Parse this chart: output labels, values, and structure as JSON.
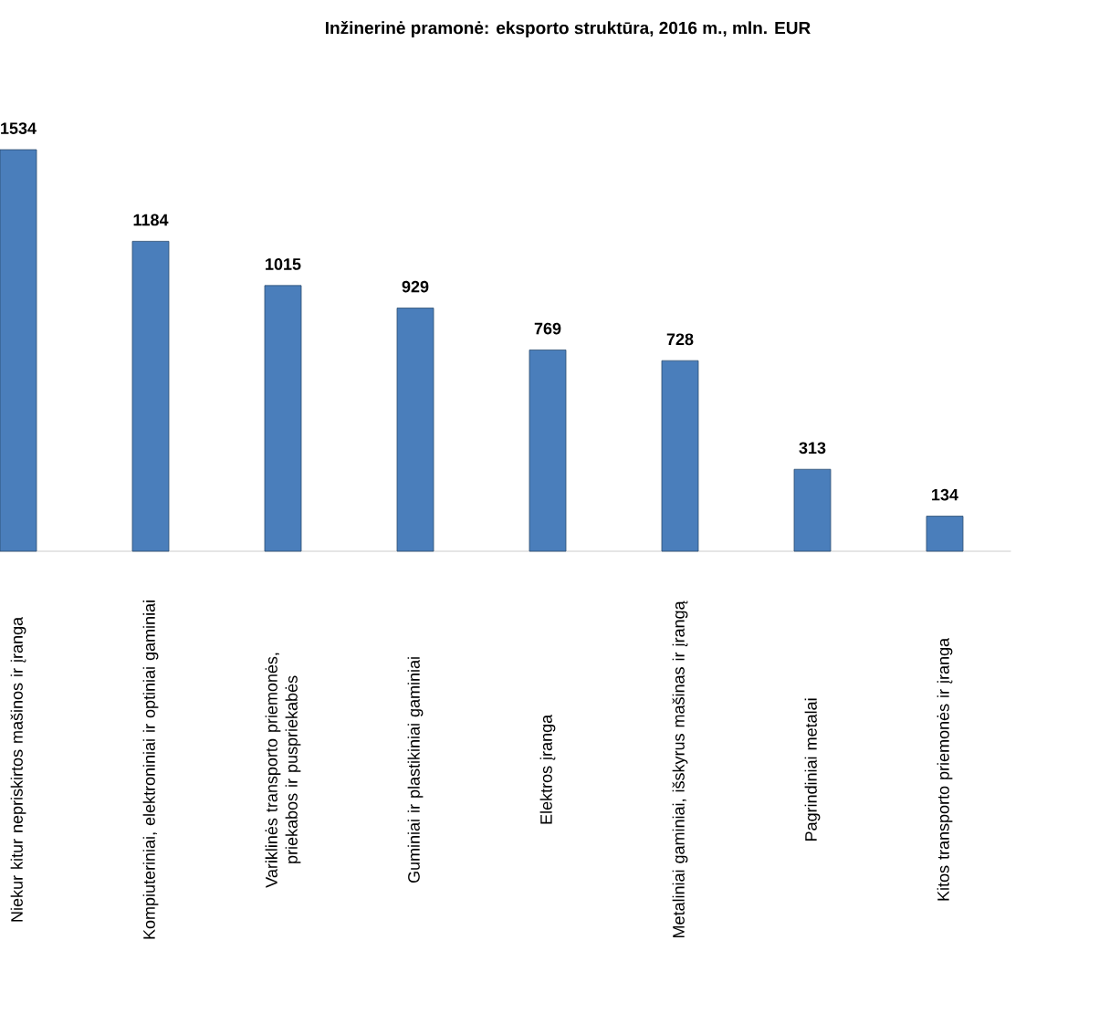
{
  "chart_data": {
    "type": "bar",
    "title": "Inžinerinė pramonė: eksporto struktūra, 2016 m., mln. EUR",
    "categories": [
      "Niekur kitur nepriskirtos mašinos ir įranga",
      "Kompiuteriniai, elektroniniai ir optiniai gaminiai",
      "Variklinės transporto priemonės, priekabos ir puspriekabės",
      "Guminiai ir plastikiniai gaminiai",
      "Elektros įranga",
      "Metaliniai gaminiai, išskyrus mašinas ir įrangą",
      "Pagrindiniai metalai",
      "Kitos transporto priemonės ir įranga"
    ],
    "values": [
      1534,
      1184,
      1015,
      929,
      769,
      728,
      313,
      134
    ],
    "color": "#4a7ebb",
    "data_labels": true,
    "ylim": [
      0,
      1534
    ]
  }
}
